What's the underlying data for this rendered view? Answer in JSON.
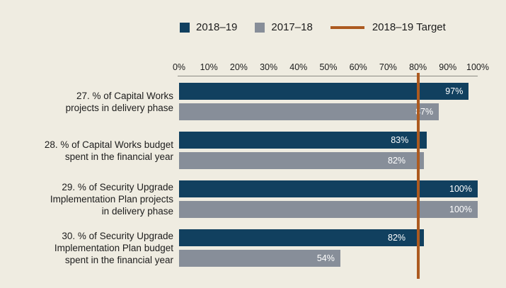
{
  "legend": {
    "items": [
      {
        "label": "2018–19",
        "type": "square",
        "color": "#11405F"
      },
      {
        "label": "2017–18",
        "type": "square",
        "color": "#878E99"
      },
      {
        "label": "2018–19 Target",
        "type": "line",
        "color": "#AC5A20"
      }
    ]
  },
  "chart_data": {
    "type": "bar",
    "orientation": "horizontal",
    "title": "",
    "xlabel": "",
    "ylabel": "",
    "xlim": [
      0,
      100
    ],
    "x_ticks": [
      "0%",
      "10%",
      "20%",
      "30%",
      "40%",
      "50%",
      "60%",
      "70%",
      "80%",
      "90%",
      "100%"
    ],
    "grid": false,
    "legend_position": "top",
    "categories": [
      "27. % of Capital Works projects in delivery phase",
      "28. % of Capital Works budget spent in the financial year",
      "29. % of Security Upgrade Implementation Plan projects in delivery phase",
      "30. % of Security Upgrade Implementation Plan budget spent in the financial year"
    ],
    "category_label_lines": [
      [
        "27. % of Capital Works",
        "projects in delivery phase"
      ],
      [
        "28. % of Capital Works budget",
        "spent in the financial year"
      ],
      [
        "29. % of Security Upgrade",
        "Implementation Plan projects",
        "in delivery phase"
      ],
      [
        "30. % of Security Upgrade",
        "Implementation Plan budget",
        "spent in the financial year"
      ]
    ],
    "series": [
      {
        "name": "2018–19",
        "color": "#11405F",
        "values": [
          97,
          83,
          100,
          82
        ],
        "value_labels": [
          "97%",
          "83%",
          "100%",
          "82%"
        ]
      },
      {
        "name": "2017–18",
        "color": "#878E99",
        "values": [
          87,
          82,
          100,
          54
        ],
        "value_labels": [
          "87%",
          "82%",
          "100%",
          "54%"
        ]
      }
    ],
    "target": {
      "name": "2018–19 Target",
      "value": 80,
      "color": "#AC5A20"
    }
  },
  "colors": {
    "background": "#EFECE1",
    "axis_line": "#8B8C84",
    "text": "#1C1C1C",
    "value_label": "#FFFFFF"
  }
}
